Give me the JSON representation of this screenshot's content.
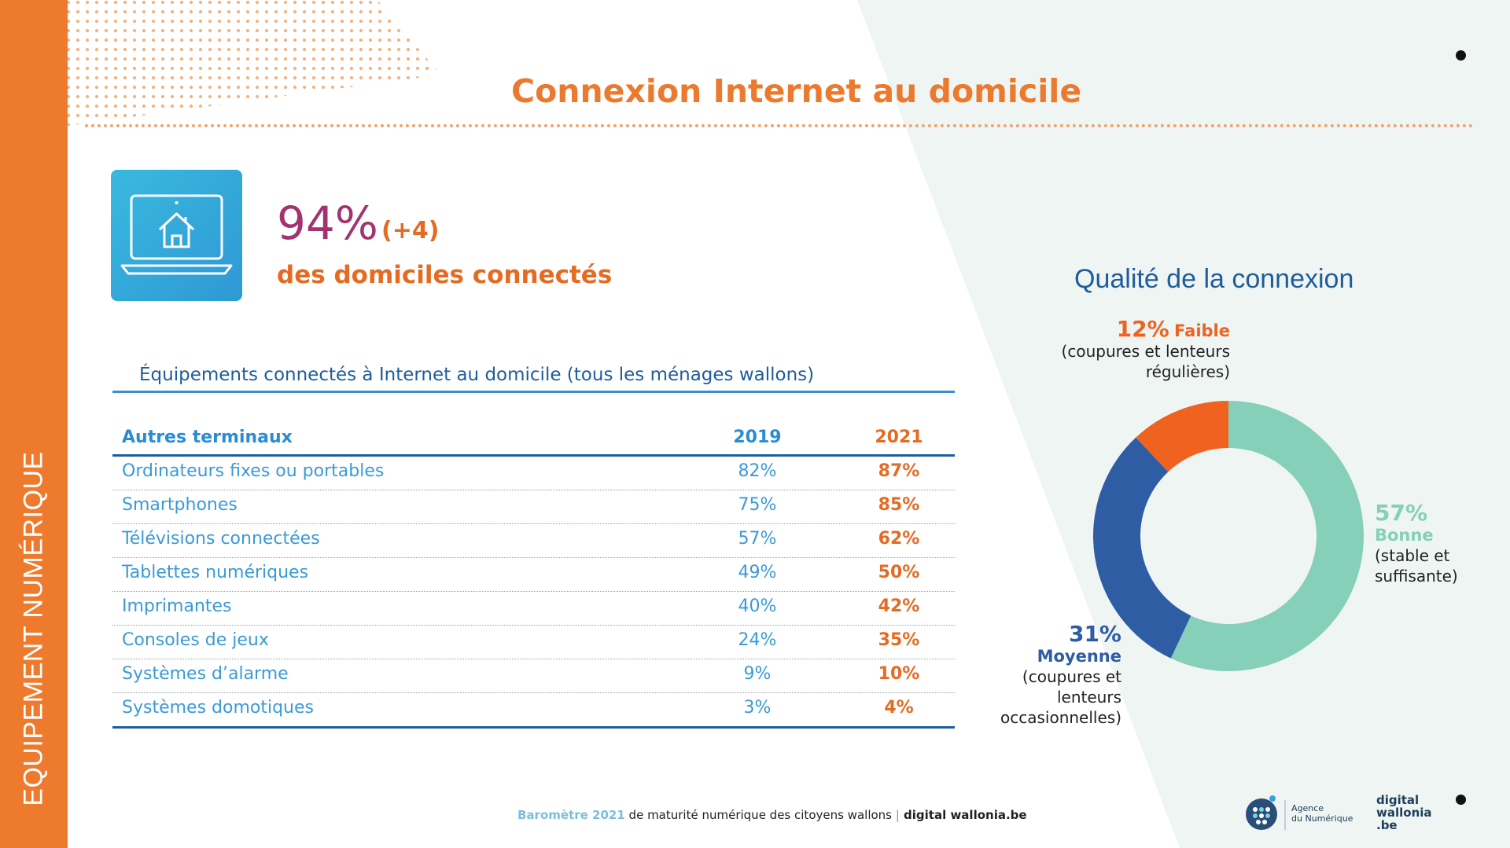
{
  "sidebar": {
    "label": "EQUIPEMENT NUMÉRIQUE"
  },
  "header": {
    "title": "Connexion Internet au domicile"
  },
  "headline": {
    "value": "94%",
    "delta": "(+4)",
    "label": "des domiciles connectés",
    "icon": "laptop-house-icon"
  },
  "table": {
    "title": "Équipements connectés à Internet au domicile (tous les ménages wallons)",
    "columns": [
      "Autres terminaux",
      "2019",
      "2021"
    ],
    "rows": [
      {
        "name": "Ordinateurs fixes ou portables",
        "y2019": "82%",
        "y2021": "87%"
      },
      {
        "name": "Smartphones",
        "y2019": "75%",
        "y2021": "85%"
      },
      {
        "name": "Télévisions connectées",
        "y2019": "57%",
        "y2021": "62%"
      },
      {
        "name": "Tablettes numériques",
        "y2019": "49%",
        "y2021": "50%"
      },
      {
        "name": "Imprimantes",
        "y2019": "40%",
        "y2021": "42%"
      },
      {
        "name": "Consoles de jeux",
        "y2019": "24%",
        "y2021": "35%"
      },
      {
        "name": "Systèmes d’alarme",
        "y2019": "9%",
        "y2021": "10%"
      },
      {
        "name": "Systèmes domotiques",
        "y2019": "3%",
        "y2021": "4%"
      }
    ]
  },
  "chart_data": {
    "type": "pie",
    "title": "Qualité de la connexion",
    "slices": [
      {
        "label": "Bonne",
        "value": 57,
        "pct_text": "57%",
        "desc": [
          "(stable et",
          "suffisante)"
        ],
        "color": "#86cfb9"
      },
      {
        "label": "Moyenne",
        "value": 31,
        "pct_text": "31%",
        "desc": [
          "(coupures et",
          "lenteurs",
          "occasionnelles)"
        ],
        "color": "#2e5da4"
      },
      {
        "label": "Faible",
        "value": 12,
        "pct_text": "12%",
        "desc": [
          "(coupures et lenteurs",
          "régulières)"
        ],
        "color": "#f0621f"
      }
    ]
  },
  "footer": {
    "part1": "Baromètre 2021",
    "part2": " de maturité numérique des citoyens wallons ",
    "sep": "|",
    "part3": " digital wallonia.be"
  },
  "logos": {
    "agence_line1": "Agence",
    "agence_line2": "du Numérique",
    "dw_line1": "digital",
    "dw_line2": "wallonia",
    "dw_line3": ".be"
  }
}
